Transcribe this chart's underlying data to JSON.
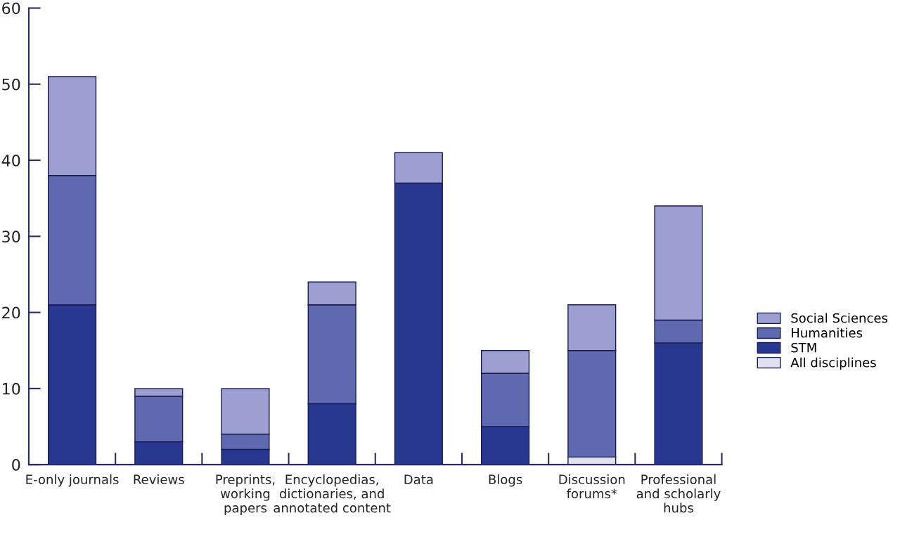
{
  "chart_data": {
    "type": "bar",
    "stacked": true,
    "categories": [
      "E-only journals",
      "Reviews",
      "Preprints,\nworking\npapers",
      "Encyclopedias,\ndictionaries, and\nannotated content",
      "Data",
      "Blogs",
      "Discussion\nforums*",
      "Professional\nand scholarly\nhubs"
    ],
    "series": [
      {
        "name": "All disciplines",
        "color": "#e0e0f0",
        "values": [
          0,
          0,
          0,
          0,
          0,
          0,
          1,
          0
        ]
      },
      {
        "name": "STM",
        "color": "#283890",
        "values": [
          21,
          3,
          2,
          8,
          37,
          5,
          0,
          16
        ]
      },
      {
        "name": "Humanities",
        "color": "#5e69b0",
        "values": [
          17,
          6,
          2,
          13,
          0,
          7,
          14,
          3
        ]
      },
      {
        "name": "Social Sciences",
        "color": "#9c9fd0",
        "values": [
          13,
          1,
          6,
          3,
          4,
          3,
          6,
          15
        ]
      }
    ],
    "ylim": [
      0,
      60
    ],
    "yticks": [
      0,
      10,
      20,
      30,
      40,
      50,
      60
    ],
    "grid": false,
    "legend": "right"
  }
}
